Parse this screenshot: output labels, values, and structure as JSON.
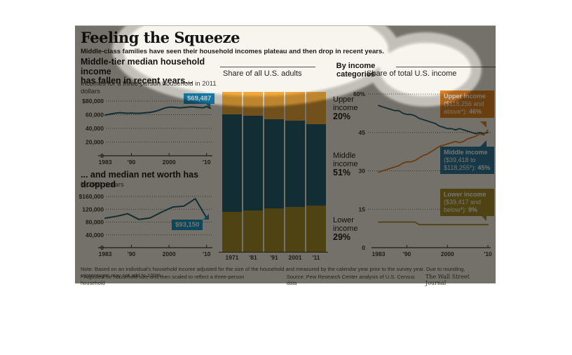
{
  "header": {
    "title": "Feeling the Squeeze",
    "subtitle": "Middle-class families have seen their household incomes plateau and then drop in recent years."
  },
  "left_column": {
    "headline1": "Middle-tier median household income",
    "headline2": "has fallen in recent years...",
    "income_caption1": "Incomes for a three-person household in 2011",
    "income_caption2": "dollars",
    "income_callout": "$69,487",
    "networth_headline": "... and median net worth has dropped",
    "networth_caption": "In 2011 dollars",
    "networth_callout": "$93,150"
  },
  "middle_column": {
    "header": "Share of all U.S. adults",
    "side_labels": [
      {
        "line1": "Upper",
        "line2": "income",
        "pct": "20%"
      },
      {
        "line1": "Middle",
        "line2": "income",
        "pct": "51%"
      },
      {
        "line1": "Lower",
        "line2": "income",
        "pct": "29%"
      }
    ]
  },
  "right_column": {
    "divider_label": "By income categories",
    "header": "Share of total U.S. income",
    "boxes": [
      {
        "line1": "Upper income",
        "line2": "($118,256 and",
        "line3": "above*): ",
        "pct": "46%"
      },
      {
        "line1": "Middle income",
        "line2": "($39,418 to",
        "line3": "$118,255*): ",
        "pct": "45%"
      },
      {
        "line1": "Lower income",
        "line2": "($39,417 and",
        "line3": "below*): ",
        "pct": "9%"
      }
    ]
  },
  "footer": {
    "note": "Note: Based on an individual's household income adjusted for the size of the household and measured by the calendar year prior to the survey year. Due to rounding, percentages may not add to 100%.",
    "footnote": "* Adjusted for household size and then scaled to reflect a three-person household",
    "source": "Source: Pew Research Center analysis of U.S. Census data",
    "credit": "The Wall Street Journal"
  },
  "colors": {
    "navy": "#1b5a77",
    "bar_gold": "#f2a93c",
    "bar_olive": "#a48c2c",
    "line_orange": "#e07b1e",
    "box_orange": "#e2801f",
    "box_blue": "#2373a0",
    "box_olive": "#a48c2c",
    "callout_blue": "#1095cf",
    "background": "#f7f5ee",
    "axis": "#35332d"
  },
  "chart_data": [
    {
      "id": "income",
      "type": "line",
      "title": "Middle-tier median household income has fallen in recent years...",
      "ylabel": "Incomes for a three-person household in 2011 dollars",
      "ylim": [
        0,
        80000
      ],
      "y_ticks": [
        {
          "label": "$80,000",
          "value": 80000
        },
        {
          "label": "60,000",
          "value": 60000
        },
        {
          "label": "40,000",
          "value": 40000
        },
        {
          "label": "20,000",
          "value": 20000
        },
        {
          "label": "0",
          "value": 0
        }
      ],
      "x_ticks": [
        {
          "label": "1983",
          "year": 1983
        },
        {
          "label": "'90",
          "year": 1990
        },
        {
          "label": "2000",
          "year": 2000
        },
        {
          "label": "'10",
          "year": 2010
        }
      ],
      "series": [
        {
          "name": "Median household income",
          "color": "#1b5a77",
          "width": 2,
          "start_year": 1983,
          "step": 1,
          "values": [
            59500,
            60500,
            61500,
            62500,
            63000,
            62500,
            62000,
            62500,
            62000,
            62000,
            62500,
            63000,
            63500,
            64500,
            66000,
            68000,
            70000,
            71000,
            71000,
            70500,
            70000,
            70500,
            71000,
            71500,
            71000,
            70500,
            70000,
            72000,
            69487
          ]
        }
      ],
      "end_label": "$69,487"
    },
    {
      "id": "networth",
      "type": "line",
      "title": "... and median net worth has dropped",
      "ylabel": "In 2011 dollars",
      "ylim": [
        0,
        160000
      ],
      "y_ticks": [
        {
          "label": "$160,000",
          "value": 160000
        },
        {
          "label": "120,000",
          "value": 120000
        },
        {
          "label": "80,000",
          "value": 80000
        },
        {
          "label": "40,000",
          "value": 40000
        },
        {
          "label": "0",
          "value": 0
        }
      ],
      "x_ticks": [
        {
          "label": "1983",
          "year": 1983
        },
        {
          "label": "'90",
          "year": 1990
        },
        {
          "label": "2000",
          "year": 2000
        },
        {
          "label": "'10",
          "year": 2010
        }
      ],
      "series": [
        {
          "name": "Median net worth",
          "color": "#1b5a77",
          "width": 2,
          "start_year": 1983,
          "step": 3,
          "values": [
            92000,
            98000,
            106000,
            88000,
            93000,
            111000,
            127000,
            130000,
            153000,
            93150
          ]
        }
      ],
      "end_label": "$93,150"
    },
    {
      "id": "adults",
      "type": "bar",
      "title": "Share of all U.S. adults",
      "categories": [
        "1971",
        "'81",
        "'91",
        "2001",
        "'11"
      ],
      "series": [
        {
          "name": "Upper income",
          "color": "#f2a93c",
          "values": [
            14,
            15,
            17,
            18,
            20
          ]
        },
        {
          "name": "Middle income",
          "color": "#1b5a77",
          "values": [
            61,
            59,
            56,
            54,
            51
          ]
        },
        {
          "name": "Lower income",
          "color": "#a48c2c",
          "values": [
            25,
            26,
            27,
            28,
            29
          ]
        }
      ],
      "stack_order": "top-to-bottom",
      "ylim": [
        0,
        100
      ]
    },
    {
      "id": "share",
      "type": "line",
      "title": "Share of total U.S. income",
      "ylim": [
        0,
        60
      ],
      "y_ticks": [
        {
          "label": "60%",
          "value": 60
        },
        {
          "label": "45",
          "value": 45
        },
        {
          "label": "30",
          "value": 30
        },
        {
          "label": "15",
          "value": 15
        },
        {
          "label": "0",
          "value": 0
        }
      ],
      "x_ticks": [
        {
          "label": "1983",
          "year": 1983
        },
        {
          "label": "'90",
          "year": 1990
        },
        {
          "label": "2000",
          "year": 2000
        },
        {
          "label": "'10",
          "year": 2010
        }
      ],
      "series": [
        {
          "name": "Middle income ($39,418 to $118,255*): 45%",
          "color": "#1b5a77",
          "width": 1.8,
          "start_year": 1983,
          "step": 1,
          "values": [
            55.5,
            55,
            54.5,
            54,
            53.5,
            53.5,
            52.5,
            52,
            52,
            51.5,
            50.5,
            50,
            49.5,
            49,
            48.5,
            47.5,
            47,
            46.5,
            46.5,
            46,
            46.5,
            46,
            45.5,
            45,
            44.5,
            45,
            44.5,
            45
          ]
        },
        {
          "name": "Upper income ($118,256 and above*): 46%",
          "color": "#e07b1e",
          "width": 1.8,
          "start_year": 1983,
          "step": 1,
          "values": [
            29.5,
            30,
            30.5,
            31,
            31.5,
            32,
            33,
            33.5,
            33.5,
            34,
            35,
            36,
            36.5,
            37.5,
            38.5,
            39.5,
            40,
            40.5,
            41,
            41.5,
            41,
            41.5,
            42.5,
            43,
            43.5,
            44.5,
            44,
            46
          ]
        },
        {
          "name": "Lower income ($39,417 and below*): 9%",
          "color": "#a48c2c",
          "width": 1.8,
          "start_year": 1983,
          "step": 1,
          "values": [
            10,
            10,
            10,
            10,
            10,
            10,
            10,
            10,
            10,
            10,
            9,
            9,
            9,
            9,
            9,
            9,
            9,
            9,
            9,
            9,
            9,
            9,
            9,
            9,
            9,
            9,
            9,
            9
          ]
        }
      ]
    }
  ]
}
